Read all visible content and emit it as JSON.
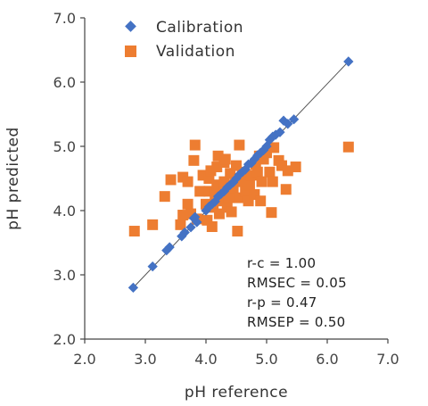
{
  "chart_data": {
    "type": "scatter",
    "xlabel": "pH reference",
    "ylabel": "pH predicted",
    "xlim": [
      2.0,
      7.0
    ],
    "ylim": [
      2.0,
      7.0
    ],
    "x_ticks": [
      "2.0",
      "3.0",
      "4.0",
      "5.0",
      "6.0",
      "7.0"
    ],
    "y_ticks": [
      "2.0",
      "3.0",
      "4.0",
      "5.0",
      "6.0",
      "7.0"
    ],
    "legend_position": "top-left",
    "series": [
      {
        "name": "Calibration",
        "marker": "diamond",
        "color": "#4472C4",
        "points": [
          [
            2.8,
            2.8
          ],
          [
            3.12,
            3.13
          ],
          [
            3.35,
            3.38
          ],
          [
            3.4,
            3.43
          ],
          [
            3.6,
            3.6
          ],
          [
            3.65,
            3.66
          ],
          [
            3.75,
            3.74
          ],
          [
            3.8,
            3.88
          ],
          [
            3.82,
            3.9
          ],
          [
            3.85,
            3.82
          ],
          [
            4.0,
            4.0
          ],
          [
            4.05,
            4.06
          ],
          [
            4.1,
            4.1
          ],
          [
            4.15,
            4.14
          ],
          [
            4.2,
            4.22
          ],
          [
            4.25,
            4.26
          ],
          [
            4.3,
            4.3
          ],
          [
            4.35,
            4.36
          ],
          [
            4.4,
            4.4
          ],
          [
            4.45,
            4.44
          ],
          [
            4.5,
            4.5
          ],
          [
            4.55,
            4.56
          ],
          [
            4.6,
            4.6
          ],
          [
            4.65,
            4.64
          ],
          [
            4.7,
            4.72
          ],
          [
            4.75,
            4.74
          ],
          [
            4.8,
            4.8
          ],
          [
            4.85,
            4.86
          ],
          [
            4.9,
            4.9
          ],
          [
            4.95,
            4.94
          ],
          [
            5.0,
            5.0
          ],
          [
            5.05,
            5.1
          ],
          [
            5.1,
            5.15
          ],
          [
            5.15,
            5.18
          ],
          [
            5.22,
            5.22
          ],
          [
            5.28,
            5.4
          ],
          [
            5.35,
            5.35
          ],
          [
            5.45,
            5.42
          ],
          [
            6.35,
            6.32
          ]
        ]
      },
      {
        "name": "Validation",
        "marker": "square",
        "color": "#ED7D31",
        "points": [
          [
            2.82,
            3.68
          ],
          [
            3.12,
            3.78
          ],
          [
            3.32,
            4.22
          ],
          [
            3.42,
            4.48
          ],
          [
            3.58,
            3.78
          ],
          [
            3.62,
            4.52
          ],
          [
            3.62,
            3.93
          ],
          [
            3.7,
            4.1
          ],
          [
            3.7,
            4.45
          ],
          [
            3.75,
            3.95
          ],
          [
            3.8,
            4.78
          ],
          [
            3.82,
            5.02
          ],
          [
            3.85,
            3.87
          ],
          [
            3.9,
            4.3
          ],
          [
            3.95,
            4.55
          ],
          [
            4.0,
            4.1
          ],
          [
            4.02,
            3.85
          ],
          [
            4.05,
            4.3
          ],
          [
            4.05,
            4.5
          ],
          [
            4.08,
            4.62
          ],
          [
            4.1,
            3.75
          ],
          [
            4.12,
            4.05
          ],
          [
            4.15,
            4.25
          ],
          [
            4.18,
            4.4
          ],
          [
            4.18,
            4.68
          ],
          [
            4.2,
            4.85
          ],
          [
            4.22,
            3.95
          ],
          [
            4.25,
            4.15
          ],
          [
            4.28,
            4.3
          ],
          [
            4.3,
            4.45
          ],
          [
            4.3,
            4.75
          ],
          [
            4.32,
            4.8
          ],
          [
            4.35,
            4.05
          ],
          [
            4.38,
            4.2
          ],
          [
            4.4,
            4.58
          ],
          [
            4.42,
            3.98
          ],
          [
            4.45,
            4.35
          ],
          [
            4.48,
            4.5
          ],
          [
            4.5,
            4.7
          ],
          [
            4.52,
            3.68
          ],
          [
            4.55,
            5.02
          ],
          [
            4.55,
            4.2
          ],
          [
            4.58,
            4.45
          ],
          [
            4.6,
            4.6
          ],
          [
            4.65,
            4.3
          ],
          [
            4.7,
            4.15
          ],
          [
            4.72,
            4.4
          ],
          [
            4.75,
            4.55
          ],
          [
            4.8,
            4.25
          ],
          [
            4.82,
            4.72
          ],
          [
            4.85,
            4.6
          ],
          [
            4.88,
            4.85
          ],
          [
            4.9,
            4.15
          ],
          [
            4.92,
            4.45
          ],
          [
            4.95,
            4.8
          ],
          [
            5.0,
            4.9
          ],
          [
            5.05,
            4.6
          ],
          [
            5.08,
            3.97
          ],
          [
            5.1,
            4.45
          ],
          [
            5.12,
            4.98
          ],
          [
            5.2,
            4.78
          ],
          [
            5.25,
            4.7
          ],
          [
            5.32,
            4.33
          ],
          [
            5.35,
            4.62
          ],
          [
            5.48,
            4.68
          ],
          [
            6.35,
            4.99
          ]
        ]
      }
    ],
    "fit_line": {
      "from": [
        2.8,
        2.8
      ],
      "to": [
        6.35,
        6.32
      ]
    }
  },
  "stats": [
    "r-c = 1.00",
    "RMSEC = 0.05",
    "r-p = 0.47",
    "RMSEP = 0.50"
  ]
}
